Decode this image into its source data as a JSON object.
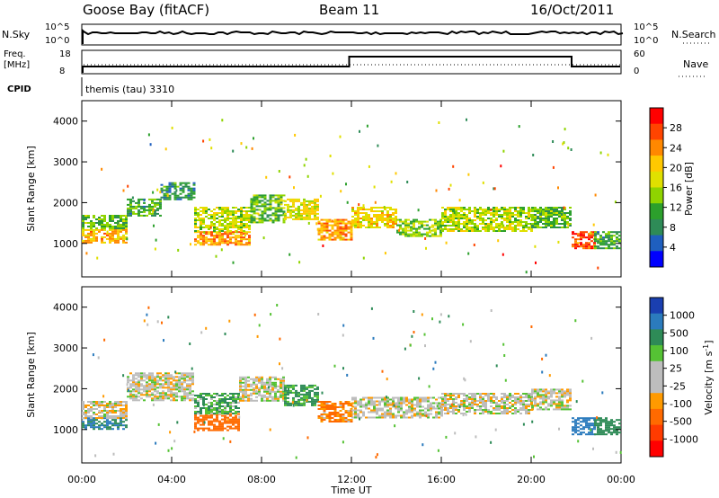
{
  "header": {
    "station": "Goose Bay (fitACF)",
    "beam": "Beam 11",
    "date": "16/Oct/2011"
  },
  "top_panels": {
    "nsky_label": "N.Sky",
    "nsky_ticks": [
      "10^5",
      "10^0"
    ],
    "nsearch_label": "N.Search",
    "nsearch_ticks": [
      "10^5",
      "10^0"
    ],
    "freq_label_1": "Freq.",
    "freq_label_2": "[MHz]",
    "freq_ticks": [
      "18",
      "8"
    ],
    "nave_label": "Nave",
    "nave_ticks": [
      "60",
      "0"
    ],
    "cpid_label": "CPID",
    "cpid_value": "themis (tau) 3310"
  },
  "colorbars": {
    "power": {
      "label": "Power [dB]",
      "ticks": [
        "28",
        "24",
        "20",
        "16",
        "12",
        "8",
        "4"
      ],
      "colors": [
        "#ff0000",
        "#ff4400",
        "#ff8800",
        "#ffc800",
        "#e0e000",
        "#8fd400",
        "#2ca02c",
        "#2e8b57",
        "#1f5fbf",
        "#0000ff"
      ]
    },
    "velocity": {
      "label": "Velocity  [m s",
      "label_sup": "-1",
      "label_end": "]",
      "ticks": [
        "1000",
        "500",
        "100",
        "25",
        "-25",
        "-100",
        "-500",
        "-1000"
      ],
      "colors": [
        "#1a3fb0",
        "#2b7bbd",
        "#2e8b57",
        "#55c234",
        "#bdbdbd",
        "#bdbdbd",
        "#ff9a00",
        "#ff6a00",
        "#ff3b00",
        "#ff0000"
      ]
    }
  },
  "chart_data": [
    {
      "type": "heatmap",
      "title": "",
      "xlabel": "",
      "ylabel": "Slant Range [km]",
      "quantity": "Power [dB]",
      "yticks": [
        "1000",
        "2000",
        "3000",
        "4000"
      ],
      "ylim": [
        180,
        4500
      ],
      "xlim_hours": [
        0,
        24
      ],
      "bands": [
        {
          "t": [
            0.0,
            2.0
          ],
          "r": [
            1000,
            1350
          ],
          "v": 22
        },
        {
          "t": [
            0.0,
            2.0
          ],
          "r": [
            1350,
            1700
          ],
          "v": 12
        },
        {
          "t": [
            2.0,
            3.5
          ],
          "r": [
            1700,
            2100
          ],
          "v": 10
        },
        {
          "t": [
            3.5,
            5.0
          ],
          "r": [
            2100,
            2500
          ],
          "v": 8
        },
        {
          "t": [
            5.0,
            7.5
          ],
          "r": [
            950,
            1300
          ],
          "v": 24
        },
        {
          "t": [
            5.0,
            7.5
          ],
          "r": [
            1300,
            1900
          ],
          "v": 16
        },
        {
          "t": [
            7.5,
            9.0
          ],
          "r": [
            1500,
            2200
          ],
          "v": 12
        },
        {
          "t": [
            9.0,
            10.5
          ],
          "r": [
            1600,
            2100
          ],
          "v": 18
        },
        {
          "t": [
            10.5,
            12.0
          ],
          "r": [
            1100,
            1600
          ],
          "v": 24
        },
        {
          "t": [
            12.0,
            14.0
          ],
          "r": [
            1400,
            1900
          ],
          "v": 20
        },
        {
          "t": [
            14.0,
            16.0
          ],
          "r": [
            1200,
            1600
          ],
          "v": 14
        },
        {
          "t": [
            16.0,
            20.0
          ],
          "r": [
            1300,
            1900
          ],
          "v": 16
        },
        {
          "t": [
            20.0,
            21.8
          ],
          "r": [
            1400,
            1900
          ],
          "v": 12
        },
        {
          "t": [
            21.8,
            22.8
          ],
          "r": [
            900,
            1300
          ],
          "v": 28
        },
        {
          "t": [
            22.8,
            24.0
          ],
          "r": [
            900,
            1300
          ],
          "v": 10
        }
      ]
    },
    {
      "type": "heatmap",
      "title": "",
      "xlabel": "Time UT",
      "ylabel": "Slant Range [km]",
      "quantity": "Velocity [m s-1]",
      "yticks": [
        "1000",
        "2000",
        "3000",
        "4000"
      ],
      "xticks": [
        "00:00",
        "04:00",
        "08:00",
        "12:00",
        "16:00",
        "20:00",
        "00:00"
      ],
      "ylim": [
        180,
        4500
      ],
      "xlim_hours": [
        0,
        24
      ],
      "bands": [
        {
          "t": [
            0.0,
            2.0
          ],
          "r": [
            1000,
            1300
          ],
          "v": 300
        },
        {
          "t": [
            0.0,
            2.0
          ],
          "r": [
            1300,
            1700
          ],
          "v": -10
        },
        {
          "t": [
            2.0,
            5.0
          ],
          "r": [
            1700,
            2400
          ],
          "v": 0
        },
        {
          "t": [
            5.0,
            7.0
          ],
          "r": [
            1000,
            1400
          ],
          "v": -200
        },
        {
          "t": [
            5.0,
            7.0
          ],
          "r": [
            1400,
            1900
          ],
          "v": 60
        },
        {
          "t": [
            7.0,
            9.0
          ],
          "r": [
            1700,
            2300
          ],
          "v": 0
        },
        {
          "t": [
            9.0,
            10.5
          ],
          "r": [
            1600,
            2100
          ],
          "v": 80
        },
        {
          "t": [
            10.5,
            12.0
          ],
          "r": [
            1200,
            1700
          ],
          "v": -60
        },
        {
          "t": [
            12.0,
            16.0
          ],
          "r": [
            1300,
            1800
          ],
          "v": 0
        },
        {
          "t": [
            16.0,
            20.0
          ],
          "r": [
            1400,
            1900
          ],
          "v": 0
        },
        {
          "t": [
            20.0,
            21.8
          ],
          "r": [
            1500,
            2000
          ],
          "v": 0
        },
        {
          "t": [
            21.8,
            22.8
          ],
          "r": [
            900,
            1300
          ],
          "v": 400
        },
        {
          "t": [
            22.8,
            24.0
          ],
          "r": [
            900,
            1300
          ],
          "v": 150
        }
      ]
    }
  ]
}
